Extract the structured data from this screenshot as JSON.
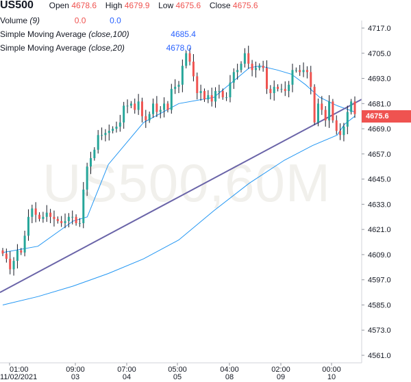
{
  "legend": {
    "symbol": "US500",
    "open_label": "Open",
    "open_value": "4678.6",
    "high_label": "High",
    "high_value": "4679.9",
    "low_label": "Low",
    "low_value": "4675.6",
    "close_label": "Close",
    "close_value": "4675.6",
    "volume_label": "Volume",
    "volume_param": "(9)",
    "volume_value_1": "0.0",
    "volume_value_2": "0.0",
    "sma100_label": "Simple Moving Average",
    "sma100_param": "(close,100)",
    "sma100_value": "4685.4",
    "sma20_label": "Simple Moving Average",
    "sma20_param": "(close,20)",
    "sma20_value": "4678.0"
  },
  "watermark": "US500,60M",
  "price_tag": "4675.6",
  "colors": {
    "up": "#26a69a",
    "down": "#ef5350",
    "wick": "#131722",
    "sma": "#2196f3",
    "trendline": "#6a64a8",
    "price_tag": "#ef5350",
    "grid": "#eaeaea"
  },
  "chart_data": {
    "type": "candlestick",
    "symbol": "US500",
    "interval": "60M",
    "y_ticks": [
      4717.0,
      4705.0,
      4693.0,
      4681.0,
      4669.0,
      4657.0,
      4645.0,
      4633.0,
      4621.0,
      4609.0,
      4597.0,
      4585.0,
      4573.0,
      4561.0
    ],
    "ylim": [
      4561.0,
      4717.0
    ],
    "x_ticks": [
      {
        "time": "01:00",
        "date": "11/02/2021"
      },
      {
        "time": "09:00",
        "date": "03"
      },
      {
        "time": "07:00",
        "date": "04"
      },
      {
        "time": "05:00",
        "date": "05"
      },
      {
        "time": "04:00",
        "date": "08"
      },
      {
        "time": "02:00",
        "date": "09"
      },
      {
        "time": "00:00",
        "date": "10"
      }
    ],
    "last_price": 4675.6,
    "close_series": [
      4609.5,
      4607,
      4602,
      4606,
      4611,
      4610,
      4618,
      4627,
      4631,
      4628,
      4626,
      4627,
      4629,
      4627,
      4626,
      4625,
      4624,
      4625,
      4627,
      4627,
      4624,
      4624,
      4640,
      4651,
      4655,
      4659,
      4666,
      4666,
      4667,
      4668,
      4669,
      4670,
      4672,
      4680,
      4680,
      4681,
      4678,
      4682,
      4675,
      4673,
      4676,
      4681,
      4677,
      4678,
      4681,
      4678,
      4688,
      4689,
      4690,
      4699,
      4705,
      4701,
      4694,
      4686,
      4687,
      4683,
      4685,
      4682,
      4687,
      4687,
      4684,
      4684,
      4691,
      4696,
      4697,
      4700,
      4705,
      4700,
      4697,
      4698,
      4699,
      4698,
      4688,
      4686,
      4689,
      4688,
      4688,
      4687,
      4690,
      4697,
      4697,
      4696,
      4697,
      4696,
      4689,
      4672,
      4681,
      4678,
      4673,
      4682,
      4673,
      4668,
      4666,
      4670,
      4677,
      4682,
      4676
    ],
    "candles_open_high_low": "approximate, per-bar open = previous close",
    "series": [
      {
        "name": "Simple Moving Average (close,100)",
        "last": 4685.4
      },
      {
        "name": "Simple Moving Average (close,20)",
        "last": 4678.0
      }
    ],
    "sma_long_path": [
      [
        0,
        4585
      ],
      [
        10,
        4589
      ],
      [
        20,
        4594
      ],
      [
        30,
        4600
      ],
      [
        40,
        4607
      ],
      [
        50,
        4616
      ],
      [
        60,
        4630
      ],
      [
        70,
        4643
      ],
      [
        80,
        4654
      ],
      [
        88,
        4661
      ],
      [
        95,
        4666
      ],
      [
        97,
        4671
      ],
      [
        100,
        4675
      ]
    ],
    "sma_short_path": [
      [
        0,
        4610
      ],
      [
        10,
        4613
      ],
      [
        20,
        4625
      ],
      [
        24,
        4627
      ],
      [
        30,
        4652
      ],
      [
        40,
        4672
      ],
      [
        50,
        4681
      ],
      [
        60,
        4684
      ],
      [
        65,
        4691
      ],
      [
        70,
        4698
      ],
      [
        73,
        4699
      ],
      [
        78,
        4697
      ],
      [
        82,
        4695
      ],
      [
        86,
        4690
      ],
      [
        90,
        4684
      ],
      [
        95,
        4680
      ],
      [
        100,
        4677
      ]
    ],
    "trendline": {
      "start": [
        0,
        4591
      ],
      "end": [
        100,
        4683
      ]
    },
    "grid": false
  }
}
